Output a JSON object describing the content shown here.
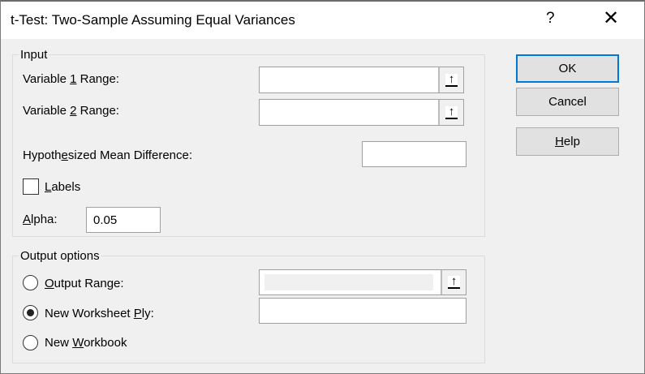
{
  "title": "t-Test: Two-Sample Assuming Equal Variances",
  "title_buttons": {
    "help": "?",
    "close": "✕"
  },
  "input_group": {
    "label": "Input",
    "variable1": {
      "pre": "Variable ",
      "key": "1",
      "post": " Range:",
      "value": ""
    },
    "variable2": {
      "pre": "Variable ",
      "key": "2",
      "post": " Range:",
      "value": ""
    },
    "hypothesized": {
      "pre": "Hypoth",
      "key": "e",
      "post": "sized Mean Difference:",
      "value": ""
    },
    "labels": {
      "pre": "",
      "key": "L",
      "post": "abels",
      "checked": false
    },
    "alpha": {
      "pre": "",
      "key": "A",
      "post": "lpha:",
      "value": "0.05"
    }
  },
  "output_group": {
    "label": "Output options",
    "output_range": {
      "pre": "",
      "key": "O",
      "post": "utput Range:",
      "selected": false,
      "value": ""
    },
    "new_worksheet": {
      "pre": "New Worksheet ",
      "key": "P",
      "post": "ly:",
      "selected": true,
      "value": ""
    },
    "new_workbook": {
      "pre": "New ",
      "key": "W",
      "post": "orkbook",
      "selected": false
    }
  },
  "buttons": {
    "ok": "OK",
    "cancel": "Cancel",
    "help": {
      "pre": "",
      "key": "H",
      "post": "elp"
    }
  },
  "icons": {
    "range_select": "upload-arrow-icon",
    "upload_glyph": "↑"
  },
  "colors": {
    "default_button_border": "#0078d7",
    "dialog_bg": "#f0f0f0"
  }
}
